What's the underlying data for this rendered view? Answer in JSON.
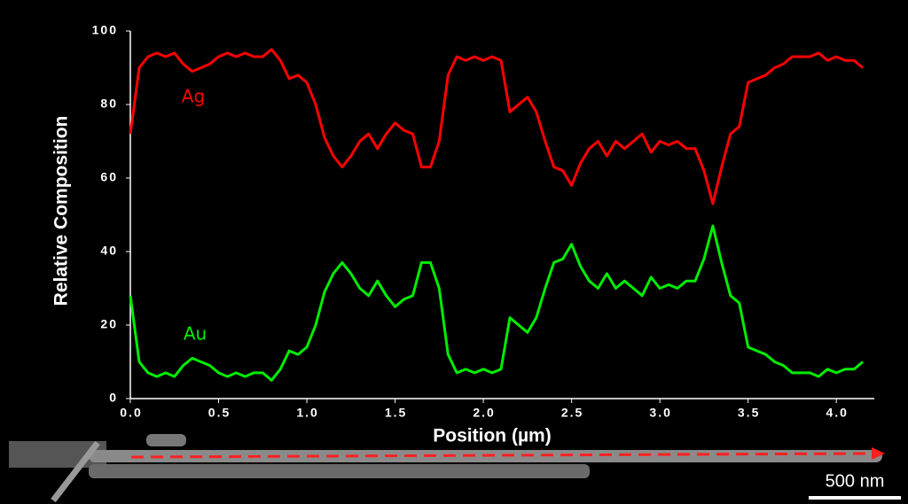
{
  "chart_data": {
    "type": "line",
    "xlabel": "Position (µm)",
    "ylabel": "Relative Composition",
    "x": [
      0,
      0.05,
      0.1,
      0.15,
      0.2,
      0.25,
      0.3,
      0.35,
      0.4,
      0.45,
      0.5,
      0.55,
      0.6,
      0.65,
      0.7,
      0.75,
      0.8,
      0.85,
      0.9,
      0.95,
      1,
      1.05,
      1.1,
      1.15,
      1.2,
      1.25,
      1.3,
      1.35,
      1.4,
      1.45,
      1.5,
      1.55,
      1.6,
      1.65,
      1.7,
      1.75,
      1.8,
      1.85,
      1.9,
      1.95,
      2,
      2.05,
      2.1,
      2.15,
      2.2,
      2.25,
      2.3,
      2.35,
      2.4,
      2.45,
      2.5,
      2.55,
      2.6,
      2.65,
      2.7,
      2.75,
      2.8,
      2.85,
      2.9,
      2.95,
      3,
      3.05,
      3.1,
      3.15,
      3.2,
      3.25,
      3.3,
      3.35,
      3.4,
      3.45,
      3.5,
      3.55,
      3.6,
      3.65,
      3.7,
      3.75,
      3.8,
      3.85,
      3.9,
      3.95,
      4,
      4.05,
      4.1,
      4.15
    ],
    "series": [
      {
        "name": "Ag",
        "color": "#ff0000",
        "values": [
          72,
          90,
          93,
          94,
          93,
          94,
          91,
          89,
          90,
          91,
          93,
          94,
          93,
          94,
          93,
          93,
          95,
          92,
          87,
          88,
          86,
          80,
          71,
          66,
          63,
          66,
          70,
          72,
          68,
          72,
          75,
          73,
          72,
          63,
          63,
          70,
          88,
          93,
          92,
          93,
          92,
          93,
          92,
          78,
          80,
          82,
          78,
          70,
          63,
          62,
          58,
          64,
          68,
          70,
          66,
          70,
          68,
          70,
          72,
          67,
          70,
          69,
          70,
          68,
          68,
          62,
          53,
          63,
          72,
          74,
          86,
          87,
          88,
          90,
          91,
          93,
          93,
          93,
          94,
          92,
          93,
          92,
          92,
          90
        ]
      },
      {
        "name": "Au",
        "color": "#00ee00",
        "values": [
          28,
          10,
          7,
          6,
          7,
          6,
          9,
          11,
          10,
          9,
          7,
          6,
          7,
          6,
          7,
          7,
          5,
          8,
          13,
          12,
          14,
          20,
          29,
          34,
          37,
          34,
          30,
          28,
          32,
          28,
          25,
          27,
          28,
          37,
          37,
          30,
          12,
          7,
          8,
          7,
          8,
          7,
          8,
          22,
          20,
          18,
          22,
          30,
          37,
          38,
          42,
          36,
          32,
          30,
          34,
          30,
          32,
          30,
          28,
          33,
          30,
          31,
          30,
          32,
          32,
          38,
          47,
          37,
          28,
          26,
          14,
          13,
          12,
          10,
          9,
          7,
          7,
          7,
          6,
          8,
          7,
          8,
          8,
          10
        ]
      }
    ],
    "xlim": [
      0,
      4.2
    ],
    "ylim": [
      0,
      100
    ],
    "xticks": [
      {
        "value": 0,
        "label": "0.0"
      },
      0.5,
      {
        "value": 1,
        "label": "1.0"
      },
      1.5,
      {
        "value": 2,
        "label": "2.0"
      },
      2.5,
      {
        "value": 3,
        "label": "3.0"
      },
      3.5,
      {
        "value": 4,
        "label": "4.0"
      }
    ],
    "yticks": [
      0,
      20,
      40,
      60,
      80,
      100
    ],
    "scale_bar_label": "500 nm"
  }
}
